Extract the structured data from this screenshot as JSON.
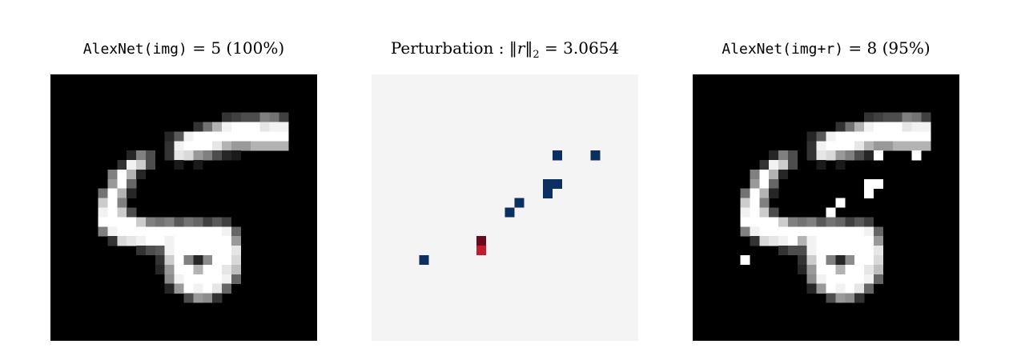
{
  "panels": [
    {
      "model": "AlexNet(img)",
      "eq": "=",
      "label": "5",
      "confidence": "(100%)",
      "image": {
        "background": "#000000",
        "grid": 28,
        "pixels": [
          [
            4,
            18,
            32,
            [
              [
                0.25,
                1
              ],
              [
                0.25,
                1
              ]
            ]
          ],
          [
            0,
            0,
            0,
            []
          ]
        ]
      }
    },
    {
      "caption": "Perturbation :",
      "norm_lhs_var": "r",
      "norm_lhs_sub": "2",
      "eq": "=",
      "norm_value": "3.0654",
      "image": {
        "background": "#f4f4f4",
        "grid": 28,
        "neg_color": "#0b2f5e",
        "pos_color_dark": "#6b0a1c",
        "pos_color_light": "#c21d2e"
      }
    },
    {
      "model": "AlexNet(img+r)",
      "eq": "=",
      "label": "8",
      "confidence": "(95%)",
      "image": {
        "background": "#000000",
        "grid": 28
      }
    }
  ]
}
